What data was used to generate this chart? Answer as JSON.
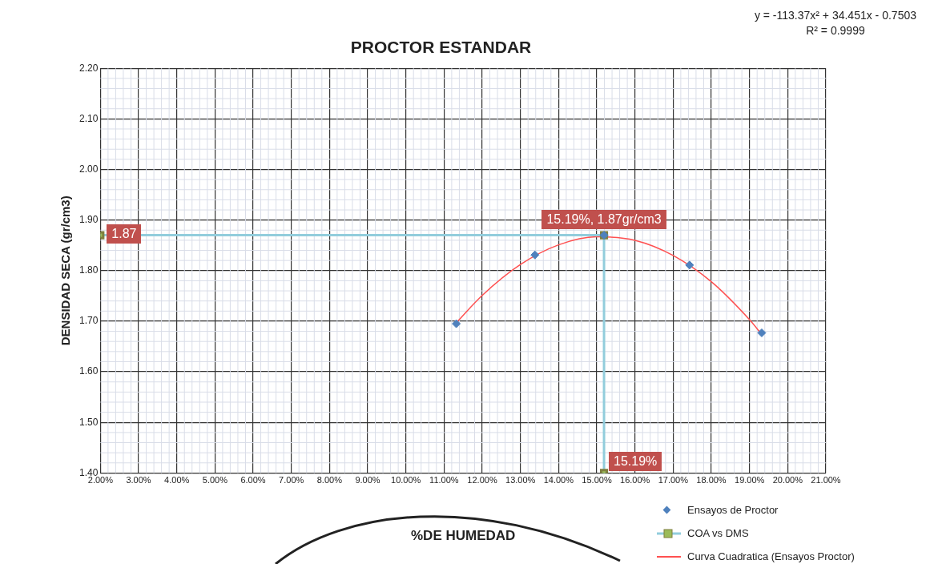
{
  "chart_data": {
    "type": "scatter",
    "title": "PROCTOR ESTANDAR",
    "xlabel": "%DE HUMEDAD",
    "ylabel": "DENSIDAD SECA (gr/cm3)",
    "annotations": [
      "y = -113.37x² + 34.451x - 0.7503",
      "R² = 0.9999",
      {
        "text": "15.19%",
        "x": 0.1519,
        "y": 1.4
      }
    ],
    "xlim": [
      0.02,
      0.21
    ],
    "xticks": [
      {
        "value": 0.02,
        "label": "2.00%"
      },
      {
        "value": 0.03,
        "label": "3.00%"
      },
      {
        "value": 0.04,
        "label": "4.00%"
      },
      {
        "value": 0.05,
        "label": "5.00%"
      },
      {
        "value": 0.06,
        "label": "6.00%"
      },
      {
        "value": 0.07,
        "label": "7.00%"
      },
      {
        "value": 0.08,
        "label": "8.00%"
      },
      {
        "value": 0.09,
        "label": "9.00%"
      },
      {
        "value": 0.1,
        "label": "10.00%"
      },
      {
        "value": 0.11,
        "label": "11.00%"
      },
      {
        "value": 0.12,
        "label": "12.00%"
      },
      {
        "value": 0.13,
        "label": "13.00%"
      },
      {
        "value": 0.14,
        "label": "14.00%"
      },
      {
        "value": 0.15,
        "label": "15.00%"
      },
      {
        "value": 0.16,
        "label": "16.00%"
      },
      {
        "value": 0.17,
        "label": "17.00%"
      },
      {
        "value": 0.18,
        "label": "18.00%"
      },
      {
        "value": 0.19,
        "label": "19.00%"
      },
      {
        "value": 0.2,
        "label": "20.00%"
      },
      {
        "value": 0.21,
        "label": "21.00%"
      }
    ],
    "ylim": [
      1.4,
      2.2
    ],
    "yticks": [
      {
        "value": 1.4,
        "label": "1.40"
      },
      {
        "value": 1.5,
        "label": "1.50"
      },
      {
        "value": 1.6,
        "label": "1.60"
      },
      {
        "value": 1.7,
        "label": "1.70"
      },
      {
        "value": 1.8,
        "label": "1.80"
      },
      {
        "value": 1.9,
        "label": "1.90"
      },
      {
        "value": 2.0,
        "label": "2.00"
      },
      {
        "value": 2.1,
        "label": "2.10"
      },
      {
        "value": 2.2,
        "label": "2.20"
      }
    ],
    "grid": true,
    "legend": "bottom right",
    "series": [
      {
        "name": "Ensayos de Proctor",
        "type": "scatter",
        "marker": "diamond",
        "color": "#4f81bd",
        "x": [
          0.1132,
          0.1338,
          0.1519,
          0.1743,
          0.1932
        ],
        "values": [
          1.695,
          1.831,
          1.87,
          1.811,
          1.677
        ]
      },
      {
        "name": "COA vs DMS",
        "type": "line",
        "marker": "square",
        "color": "#92cddc",
        "x": [
          0.02,
          0.1519,
          0.1519
        ],
        "values": [
          1.87,
          1.87,
          1.4
        ],
        "value_labels": [
          "1.87",
          "15.19%, 1.87gr/cm3",
          null
        ]
      },
      {
        "name": "Curva Cuadratica (Ensayos Proctor)",
        "type": "line",
        "marker": "none",
        "color": "#ff5050",
        "x": [
          0.1132,
          0.12,
          0.13,
          0.14,
          0.15,
          0.16,
          0.17,
          0.18,
          0.19,
          0.1932
        ],
        "values": [
          1.697,
          1.751,
          1.812,
          1.851,
          1.867,
          1.86,
          1.83,
          1.778,
          1.703,
          1.674
        ]
      }
    ]
  }
}
